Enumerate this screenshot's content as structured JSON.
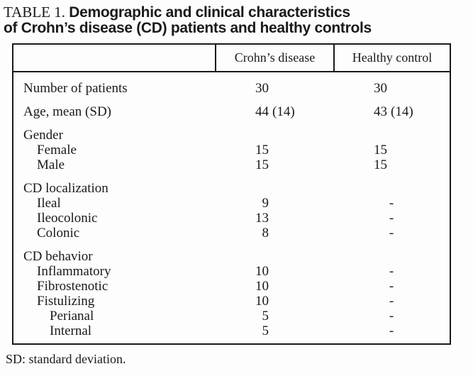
{
  "title": {
    "label": "TABLE 1.",
    "line1": "Demographic and clinical characteristics",
    "line2": "of Crohn’s disease (CD) patients and healthy controls"
  },
  "table": {
    "columns": [
      "Crohn’s disease",
      "Healthy control"
    ],
    "rows": [
      {
        "label": "Number of patients",
        "indent": 0,
        "gap": false,
        "cd": {
          "num": "30"
        },
        "hc": {
          "num": "30"
        }
      },
      {
        "label": "Age, mean (SD)",
        "indent": 0,
        "gap": true,
        "cd": {
          "num": "44",
          "paren": "(14)"
        },
        "hc": {
          "num": "43",
          "paren": "(14)"
        }
      },
      {
        "label": "Gender",
        "indent": 0,
        "gap": true,
        "cd": null,
        "hc": null
      },
      {
        "label": "Female",
        "indent": 1,
        "gap": false,
        "cd": {
          "num": "15"
        },
        "hc": {
          "num": "15"
        }
      },
      {
        "label": "Male",
        "indent": 1,
        "gap": false,
        "cd": {
          "num": "15"
        },
        "hc": {
          "num": "15"
        }
      },
      {
        "label": "CD localization",
        "indent": 0,
        "gap": true,
        "cd": null,
        "hc": null
      },
      {
        "label": "Ileal",
        "indent": 1,
        "gap": false,
        "cd": {
          "num": "9"
        },
        "hc": {
          "dash": "-"
        }
      },
      {
        "label": "Ileocolonic",
        "indent": 1,
        "gap": false,
        "cd": {
          "num": "13"
        },
        "hc": {
          "dash": "-"
        }
      },
      {
        "label": "Colonic",
        "indent": 1,
        "gap": false,
        "cd": {
          "num": "8"
        },
        "hc": {
          "dash": "-"
        }
      },
      {
        "label": "CD behavior",
        "indent": 0,
        "gap": true,
        "cd": null,
        "hc": null
      },
      {
        "label": "Inflammatory",
        "indent": 1,
        "gap": false,
        "cd": {
          "num": "10"
        },
        "hc": {
          "dash": "-"
        }
      },
      {
        "label": "Fibrostenotic",
        "indent": 1,
        "gap": false,
        "cd": {
          "num": "10"
        },
        "hc": {
          "dash": "-"
        }
      },
      {
        "label": "Fistulizing",
        "indent": 1,
        "gap": false,
        "cd": {
          "num": "10"
        },
        "hc": {
          "dash": "-"
        }
      },
      {
        "label": "Perianal",
        "indent": 2,
        "gap": false,
        "cd": {
          "num": "5"
        },
        "hc": {
          "dash": "-"
        }
      },
      {
        "label": "Internal",
        "indent": 2,
        "gap": false,
        "cd": {
          "num": "5"
        },
        "hc": {
          "dash": "-"
        }
      }
    ]
  },
  "footnote": "SD: standard deviation.",
  "colors": {
    "text": "#1a1a1a",
    "border": "#1a1a1a",
    "background": "#fdfdfd"
  }
}
